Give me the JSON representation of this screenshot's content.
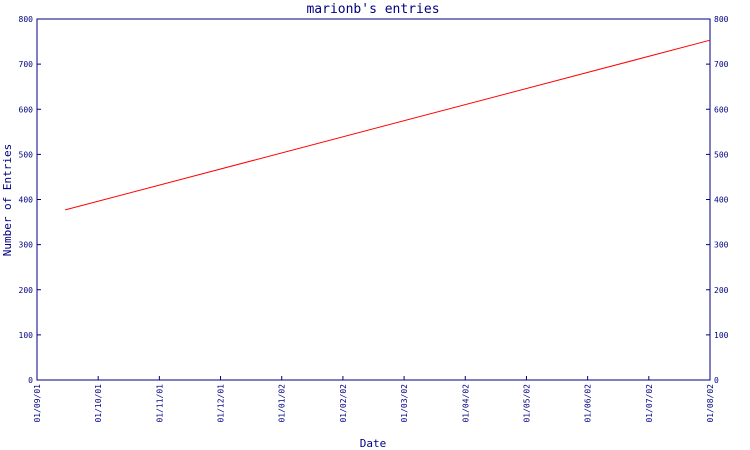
{
  "chart_data": {
    "type": "line",
    "title": "marionb's entries",
    "xlabel": "Date",
    "ylabel": "Number of Entries",
    "x_tick_labels": [
      "01/09/01",
      "01/10/01",
      "01/11/01",
      "01/12/01",
      "01/01/02",
      "01/02/02",
      "01/03/02",
      "01/04/02",
      "01/05/02",
      "01/06/02",
      "01/07/02",
      "01/08/02"
    ],
    "y_ticks": [
      0,
      100,
      200,
      300,
      400,
      500,
      600,
      700,
      800
    ],
    "ylim": [
      0,
      800
    ],
    "xlim": [
      "2001-09-01",
      "2002-08-01"
    ],
    "series": [
      {
        "x": [
          "2001-09-15",
          "2002-08-01"
        ],
        "values": [
          377,
          753
        ]
      }
    ],
    "grid": false,
    "colors": {
      "axes": "#000080",
      "line": "#ff0000",
      "text": "#000080"
    }
  }
}
